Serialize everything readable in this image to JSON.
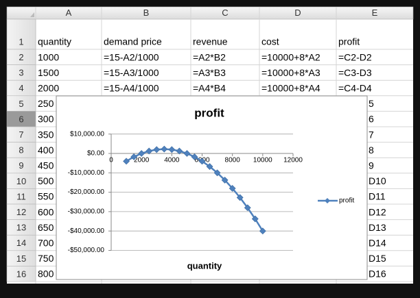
{
  "spreadsheet": {
    "columns": [
      "A",
      "B",
      "C",
      "D",
      "E"
    ],
    "row_numbers": [
      1,
      2,
      3,
      4,
      5,
      6,
      7,
      8,
      9,
      10,
      11,
      12,
      13,
      14,
      15,
      16
    ],
    "cells": [
      {
        "A": "quantity",
        "B": "demand price",
        "C": "revenue",
        "D": "cost",
        "E": "profit"
      },
      {
        "A": "1000",
        "B": "=15-A2/1000",
        "C": "=A2*B2",
        "D": "=10000+8*A2",
        "E": "=C2-D2"
      },
      {
        "A": "1500",
        "B": "=15-A3/1000",
        "C": "=A3*B3",
        "D": "=10000+8*A3",
        "E": "=C3-D3"
      },
      {
        "A": "2000",
        "B": "=15-A4/1000",
        "C": "=A4*B4",
        "D": "=10000+8*A4",
        "E": "=C4-D4"
      },
      {
        "A": "250",
        "E": "5"
      },
      {
        "A": "300",
        "E": "6"
      },
      {
        "A": "350",
        "E": "7"
      },
      {
        "A": "400",
        "E": "8"
      },
      {
        "A": "450",
        "E": "9"
      },
      {
        "A": "500",
        "E": "D10"
      },
      {
        "A": "550",
        "E": "D11"
      },
      {
        "A": "600",
        "E": "D12"
      },
      {
        "A": "650",
        "E": "D13"
      },
      {
        "A": "700",
        "E": "D14"
      },
      {
        "A": "750",
        "E": "D15"
      },
      {
        "A": "800",
        "E": "D16"
      }
    ]
  },
  "chart_data": {
    "type": "line",
    "title": "profit",
    "x_label": "quantity",
    "x": [
      1000,
      1500,
      2000,
      2500,
      3000,
      3500,
      4000,
      4500,
      5000,
      5500,
      6000,
      6500,
      7000,
      7500,
      8000,
      8500,
      9000,
      9500,
      10000
    ],
    "series": [
      {
        "name": "profit",
        "color": "#4f81bd",
        "values": [
          -4000,
          -1750,
          0,
          1250,
          2000,
          2250,
          2000,
          1250,
          0,
          -1750,
          -4000,
          -6750,
          -10000,
          -13750,
          -18000,
          -22750,
          -28000,
          -33750,
          -40000
        ]
      }
    ],
    "xlim": [
      0,
      12000
    ],
    "xticks": [
      0,
      2000,
      4000,
      6000,
      8000,
      10000,
      12000
    ],
    "ylim": [
      -50000,
      10000
    ],
    "yticks": [
      {
        "value": 10000,
        "label": "$10,000.00"
      },
      {
        "value": 0,
        "label": "$0.00"
      },
      {
        "value": -10000,
        "label": "-$10,000.00"
      },
      {
        "value": -20000,
        "label": "-$20,000.00"
      },
      {
        "value": -30000,
        "label": "-$30,000.00"
      },
      {
        "value": -40000,
        "label": "-$40,000.00"
      },
      {
        "value": -50000,
        "label": "-$50,000.00"
      }
    ],
    "grid": true,
    "legend": "right"
  }
}
